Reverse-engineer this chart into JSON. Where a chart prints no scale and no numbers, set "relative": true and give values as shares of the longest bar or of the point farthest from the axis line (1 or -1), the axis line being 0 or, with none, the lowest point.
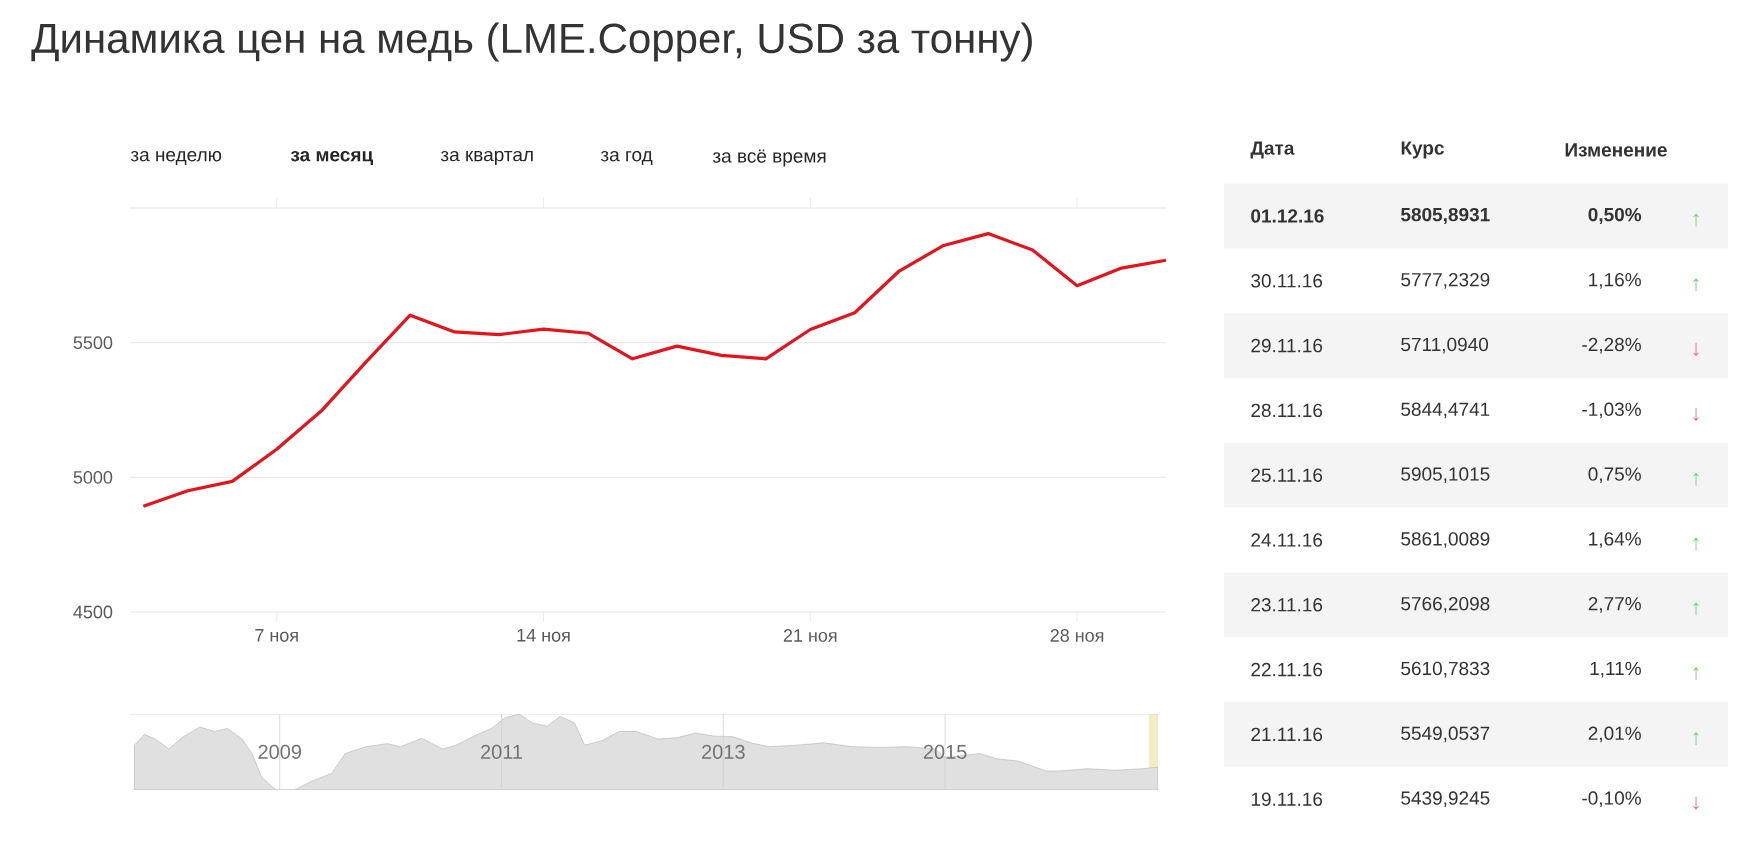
{
  "chart_data": [
    {
      "type": "line",
      "title": "Динамика цен на медь (LME.Copper, USD за тонну)",
      "annotations": [
        "за неделю",
        "за месяц",
        "за квартал",
        "за год",
        "за всё время"
      ],
      "categories": [
        null,
        null,
        null,
        "7 ноя",
        null,
        null,
        null,
        null,
        null,
        "14 ноя",
        null,
        null,
        null,
        null,
        null,
        "21 ноя",
        null,
        null,
        null,
        null,
        null,
        "28 ноя",
        null,
        null
      ],
      "series": [
        {
          "color": "#e3141c",
          "values": [
            4893,
            4950,
            4985,
            5104,
            5246,
            5427,
            5602,
            5540,
            5530,
            5550,
            5535,
            5440,
            5487,
            5453,
            5440,
            5549,
            5611,
            5766,
            5861,
            5905,
            5844,
            5711,
            5777,
            5806
          ]
        }
      ],
      "ylim": [
        4500,
        6000
      ],
      "yticks": [
        4500,
        5000,
        5500,
        {
          "value": 6000,
          "label": null
        }
      ],
      "grid": "y"
    },
    {
      "type": "area",
      "relative": true,
      "x": [
        2007.69,
        2007.78,
        2007.88,
        2008.0,
        2008.13,
        2008.28,
        2008.41,
        2008.53,
        2008.66,
        2008.75,
        2008.84,
        2008.97,
        2009.13,
        2009.28,
        2009.47,
        2009.59,
        2009.78,
        2009.97,
        2010.09,
        2010.28,
        2010.47,
        2010.59,
        2010.78,
        2010.91,
        2011.03,
        2011.16,
        2011.28,
        2011.41,
        2011.53,
        2011.66,
        2011.75,
        2011.91,
        2012.06,
        2012.22,
        2012.41,
        2012.59,
        2012.75,
        2012.91,
        2013.09,
        2013.25,
        2013.41,
        2013.66,
        2013.91,
        2014.16,
        2014.41,
        2014.66,
        2014.91,
        2015.0,
        2015.16,
        2015.31,
        2015.47,
        2015.66,
        2015.91,
        2016.03,
        2016.28,
        2016.53,
        2016.78,
        2016.92
      ],
      "series": [
        {
          "color": "#e0e0e0",
          "values": [
            0.59,
            0.73,
            0.67,
            0.54,
            0.7,
            0.83,
            0.77,
            0.81,
            0.67,
            0.48,
            0.16,
            0,
            0,
            0.11,
            0.22,
            0.48,
            0.57,
            0.61,
            0.57,
            0.68,
            0.54,
            0.59,
            0.73,
            0.81,
            0.95,
            1,
            0.88,
            0.84,
            0.97,
            0.88,
            0.59,
            0.65,
            0.77,
            0.77,
            0.67,
            0.69,
            0.75,
            0.71,
            0.7,
            0.62,
            0.57,
            0.59,
            0.62,
            0.57,
            0.56,
            0.57,
            0.54,
            0.43,
            0.45,
            0.48,
            0.41,
            0.38,
            0.25,
            0.25,
            0.28,
            0.26,
            0.28,
            0.3
          ]
        }
      ],
      "xlim": [
        2007.65,
        2016.92
      ],
      "xticks": [
        2009,
        2011,
        2013,
        2015
      ],
      "grid": "x",
      "bands": [
        {
          "axis": "x",
          "from": 2016.84,
          "to": 2016.92,
          "color": "#f3edc2"
        }
      ]
    },
    {
      "type": "other",
      "annotations": [
        "Дата",
        "Курс",
        "Изменение",
        "01.12.16",
        "5805,8931",
        "0,50%",
        "↑",
        "30.11.16",
        "5777,2329",
        "1,16%",
        "↑",
        "29.11.16",
        "5711,0940",
        "-2,28%",
        "↓",
        "28.11.16",
        "5844,4741",
        "-1,03%",
        "↓",
        "25.11.16",
        "5905,1015",
        "0,75%",
        "↑",
        "24.11.16",
        "5861,0089",
        "1,64%",
        "↑",
        "23.11.16",
        "5766,2098",
        "2,77%",
        "↑",
        "22.11.16",
        "5610,7833",
        "1,11%",
        "↑",
        "21.11.16",
        "5549,0537",
        "2,01%",
        "↑",
        "19.11.16",
        "5439,9245",
        "-0,10%",
        "↓"
      ],
      "colors": [
        "#6fd36f",
        "#6fd36f",
        "#e57373",
        "#e57373",
        "#6fd36f",
        "#6fd36f",
        "#6fd36f",
        "#6fd36f",
        "#6fd36f",
        "#e57373"
      ]
    }
  ]
}
